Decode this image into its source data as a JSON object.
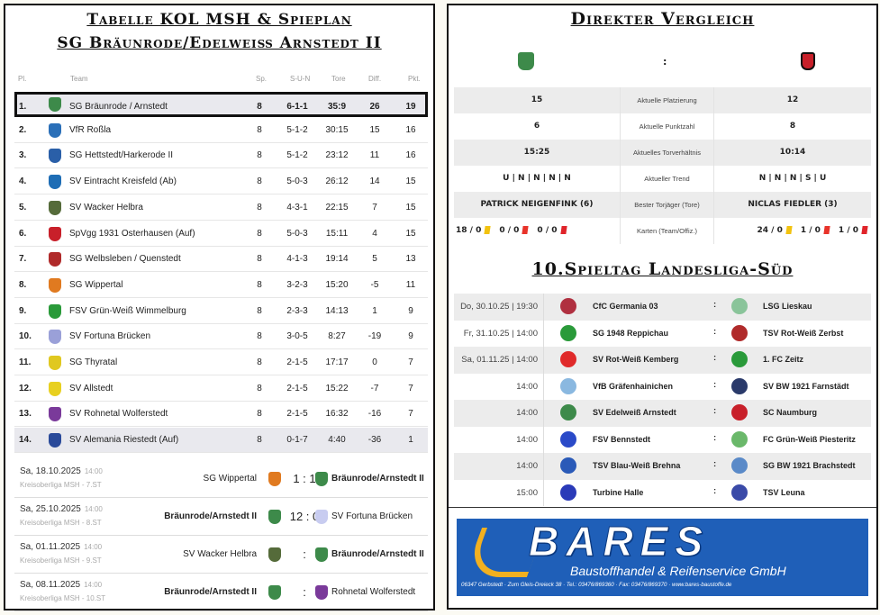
{
  "left": {
    "title1": "Tabelle KOL MSH & Spieplan",
    "title2": "SG Bräunrode/Edelweiß Arnstedt II",
    "headers": {
      "pl": "Pl.",
      "team": "Team",
      "sp": "Sp.",
      "sun": "S-U-N",
      "tore": "Tore",
      "diff": "Diff.",
      "pkt": "Pkt."
    },
    "rows": [
      {
        "pl": "1.",
        "team": "SG Bräunrode / Arnstedt",
        "sp": "8",
        "sun": "6-1-1",
        "tore": "35:9",
        "diff": "26",
        "pkt": "19",
        "color": "#3d8a4a"
      },
      {
        "pl": "2.",
        "team": "VfR Roßla",
        "sp": "8",
        "sun": "5-1-2",
        "tore": "30:15",
        "diff": "15",
        "pkt": "16",
        "color": "#2a6fb8"
      },
      {
        "pl": "3.",
        "team": "SG Hettstedt/Harkerode II",
        "sp": "8",
        "sun": "5-1-2",
        "tore": "23:12",
        "diff": "11",
        "pkt": "16",
        "color": "#2a5fa8"
      },
      {
        "pl": "4.",
        "team": "SV Eintracht Kreisfeld (Ab)",
        "sp": "8",
        "sun": "5-0-3",
        "tore": "26:12",
        "diff": "14",
        "pkt": "15",
        "color": "#1e6db5"
      },
      {
        "pl": "5.",
        "team": "SV Wacker Helbra",
        "sp": "8",
        "sun": "4-3-1",
        "tore": "22:15",
        "diff": "7",
        "pkt": "15",
        "color": "#556b3a"
      },
      {
        "pl": "6.",
        "team": "SpVgg 1931 Osterhausen (Auf)",
        "sp": "8",
        "sun": "5-0-3",
        "tore": "15:11",
        "diff": "4",
        "pkt": "15",
        "color": "#c8202a"
      },
      {
        "pl": "7.",
        "team": "SG Welbsleben / Quenstedt",
        "sp": "8",
        "sun": "4-1-3",
        "tore": "19:14",
        "diff": "5",
        "pkt": "13",
        "color": "#b02a2a"
      },
      {
        "pl": "8.",
        "team": "SG Wippertal",
        "sp": "8",
        "sun": "3-2-3",
        "tore": "15:20",
        "diff": "-5",
        "pkt": "11",
        "color": "#e07a20"
      },
      {
        "pl": "9.",
        "team": "FSV Grün-Weiß Wimmelburg",
        "sp": "8",
        "sun": "2-3-3",
        "tore": "14:13",
        "diff": "1",
        "pkt": "9",
        "color": "#2a9a3a"
      },
      {
        "pl": "10.",
        "team": "SV Fortuna Brücken",
        "sp": "8",
        "sun": "3-0-5",
        "tore": "8:27",
        "diff": "-19",
        "pkt": "9",
        "color": "#9aa0d8"
      },
      {
        "pl": "11.",
        "team": "SG Thyratal",
        "sp": "8",
        "sun": "2-1-5",
        "tore": "17:17",
        "diff": "0",
        "pkt": "7",
        "color": "#e0c820"
      },
      {
        "pl": "12.",
        "team": "SV Allstedt",
        "sp": "8",
        "sun": "2-1-5",
        "tore": "15:22",
        "diff": "-7",
        "pkt": "7",
        "color": "#e8d020"
      },
      {
        "pl": "13.",
        "team": "SV Rohnetal Wolferstedt",
        "sp": "8",
        "sun": "2-1-5",
        "tore": "16:32",
        "diff": "-16",
        "pkt": "7",
        "color": "#7a3a9a"
      },
      {
        "pl": "14.",
        "team": "SV Alemania Riestedt (Auf)",
        "sp": "8",
        "sun": "0-1-7",
        "tore": "4:40",
        "diff": "-36",
        "pkt": "1",
        "color": "#2a4a9a"
      }
    ],
    "fixtures": [
      {
        "date": "Sa, 18.10.2025",
        "time": "14:00",
        "league": "Kreisoberliga MSH - 7.ST",
        "home": "SG Wippertal",
        "score": "1 : 1",
        "away": "Bräunrode/Arnstedt II",
        "homeBold": false,
        "awayBold": true
      },
      {
        "date": "Sa, 25.10.2025",
        "time": "14:00",
        "league": "Kreisoberliga MSH - 8.ST",
        "home": "Bräunrode/Arnstedt II",
        "score": "12 : 0",
        "away": "SV Fortuna Brücken",
        "homeBold": true,
        "awayBold": false
      },
      {
        "date": "Sa, 01.11.2025",
        "time": "14:00",
        "league": "Kreisoberliga MSH - 9.ST",
        "home": "SV Wacker Helbra",
        "score": ":",
        "away": "Bräunrode/Arnstedt II",
        "homeBold": false,
        "awayBold": true
      },
      {
        "date": "Sa, 08.11.2025",
        "time": "14:00",
        "league": "Kreisoberliga MSH - 10.ST",
        "home": "Bräunrode/Arnstedt II",
        "score": ":",
        "away": "Rohnetal Wolferstedt",
        "homeBold": true,
        "awayBold": false
      }
    ]
  },
  "right": {
    "title": "Direkter Vergleich",
    "vs": ":",
    "compare": [
      {
        "left": "15",
        "label": "Aktuelle Platzierung",
        "right": "12"
      },
      {
        "left": "6",
        "label": "Aktuelle Punktzahl",
        "right": "8"
      },
      {
        "left": "15:25",
        "label": "Aktuelles Torverhältnis",
        "right": "10:14"
      },
      {
        "left": "U | N | N | N | N",
        "label": "Aktueller Trend",
        "right": "N | N | N | S | U"
      },
      {
        "left": "PATRICK NEIGENFINK (6)",
        "label": "Bester Torjäger (Tore)",
        "right": "NICLAS FIEDLER (3)"
      }
    ],
    "cards": {
      "label": "Karten (Team/Offiz.)",
      "left": [
        "18 / 0",
        "0 / 0",
        "0 / 0"
      ],
      "right": [
        "24 / 0",
        "1 / 0",
        "1 / 0"
      ],
      "colors": [
        "#f2c20f",
        "#e8332a",
        "#e0242a"
      ]
    },
    "title2": "10.Spieltag Landesliga-Süd",
    "matches": [
      {
        "date": "Do, 30.10.25 | 19:30",
        "home": "CfC Germania 03",
        "away": "LSG Lieskau",
        "hc": "#b03040",
        "ac": "#8ac49a"
      },
      {
        "date": "Fr, 31.10.25 | 14:00",
        "home": "SG 1948 Reppichau",
        "away": "TSV Rot-Weiß Zerbst",
        "hc": "#2a9a3a",
        "ac": "#b02a2a"
      },
      {
        "date": "Sa, 01.11.25 | 14:00",
        "home": "SV Rot-Weiß Kemberg",
        "away": "1. FC Zeitz",
        "hc": "#e02a2a",
        "ac": "#2a9a3a"
      },
      {
        "date": "14:00",
        "home": "VfB Gräfenhainichen",
        "away": "SV BW 1921 Farnstädt",
        "hc": "#8ab8e0",
        "ac": "#2a3a6a"
      },
      {
        "date": "14:00",
        "home": "SV Edelweiß Arnstedt",
        "away": "SC Naumburg",
        "hc": "#3d8a4a",
        "ac": "#c8202a"
      },
      {
        "date": "14:00",
        "home": "FSV Bennstedt",
        "away": "FC Grün-Weiß Piesteritz",
        "hc": "#2a4ac8",
        "ac": "#6ab86a"
      },
      {
        "date": "14:00",
        "home": "TSV Blau-Weiß Brehna",
        "away": "SG BW 1921 Brachstedt",
        "hc": "#2a5ab8",
        "ac": "#5a8ac8"
      },
      {
        "date": "15:00",
        "home": "Turbine Halle",
        "away": "TSV Leuna",
        "hc": "#2a3ab8",
        "ac": "#3a4aa8"
      }
    ],
    "ad": {
      "brand": "BARES",
      "tagline": "Baustoffhandel & Reifenservice GmbH",
      "address": "06347 Gerbstedt · Zum Gleis-Dreieck 38 · Tel.: 03476/869360 · Fax: 03476/869370 · www.bares-baustoffe.de",
      "bg": "#1f5fb8"
    }
  }
}
